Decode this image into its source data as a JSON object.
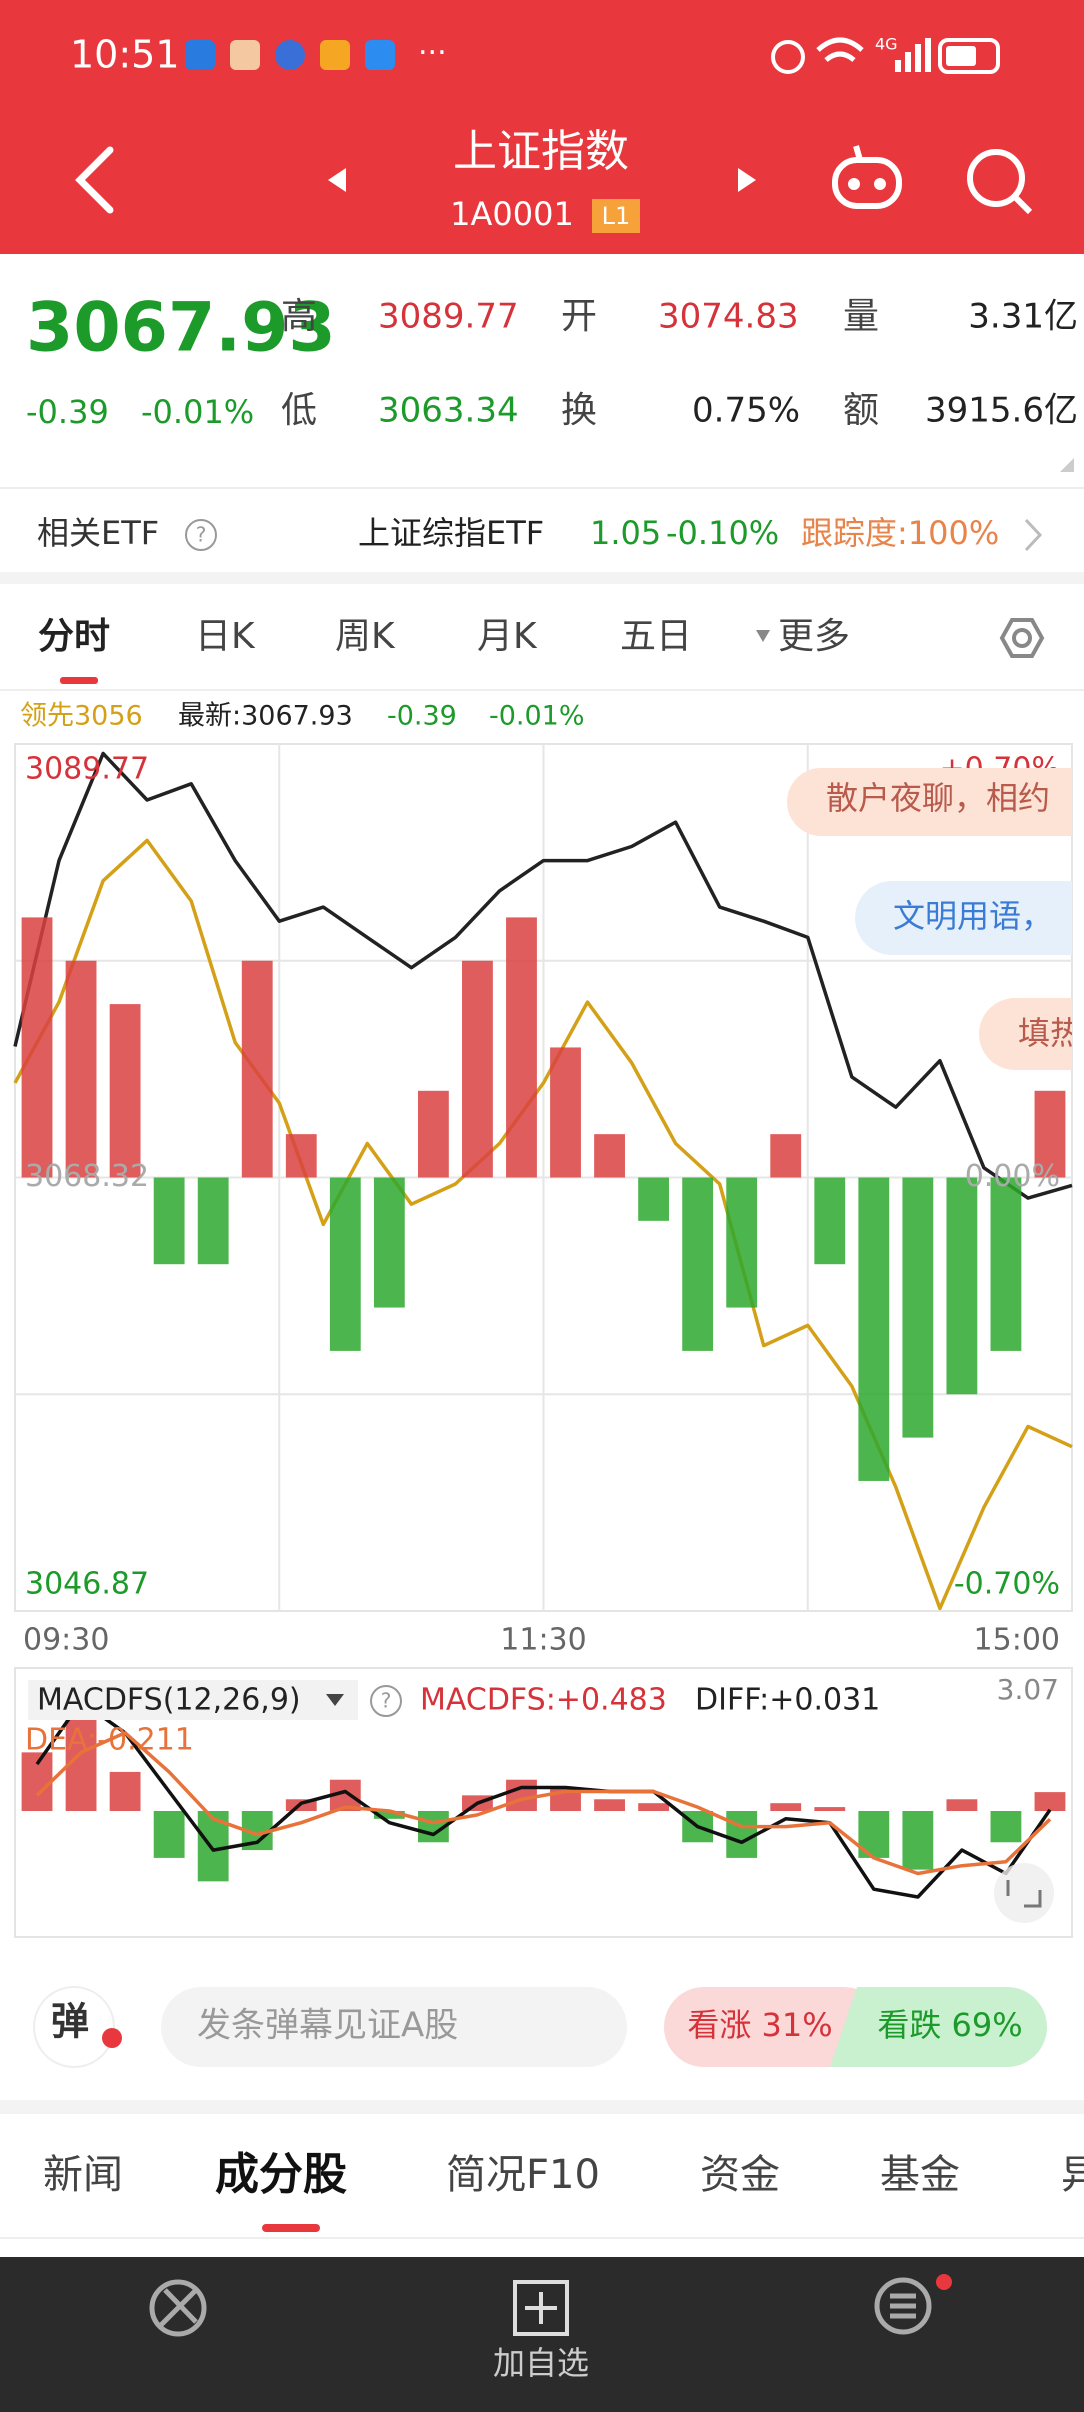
{
  "status_bar": {
    "time": "10:51",
    "more": "···",
    "network": "4G"
  },
  "header": {
    "title": "上证指数",
    "code": "1A0001",
    "level": "L1"
  },
  "quote": {
    "price": "3067.93",
    "change": "-0.39",
    "change_pct": "-0.01%",
    "fields": [
      {
        "label": "高",
        "value": "3089.77"
      },
      {
        "label": "开",
        "value": "3074.83"
      },
      {
        "label": "量",
        "value": "3.31亿"
      },
      {
        "label": "低",
        "value": "3063.34"
      },
      {
        "label": "换",
        "value": "0.75%"
      },
      {
        "label": "额",
        "value": "3915.6亿"
      }
    ]
  },
  "etf": {
    "label": "相关ETF",
    "help": "?",
    "name": "上证综指ETF",
    "price": "1.05",
    "change": "-0.10%",
    "tracking": "跟踪度:100%"
  },
  "tabs": [
    "分时",
    "日K",
    "周K",
    "月K",
    "五日",
    "更多"
  ],
  "legend": {
    "lead": "领先3056",
    "latest": "最新:3067.93",
    "change": "-0.39",
    "change_pct": "-0.01%"
  },
  "danmaku_bubbles": [
    "散户夜聊，相约",
    "文明用语，",
    "填热"
  ],
  "macd_legend": {
    "name": "MACDFS(12,26,9)",
    "help": "?",
    "macdfs": "MACDFS:+0.483",
    "diff": "DIFF:+0.031",
    "dea": "DEA:-0.211"
  },
  "danmaku": {
    "icon": "弹",
    "placeholder": "发条弹幕见证A股",
    "up": "看涨 31%",
    "down": "看跌 69%"
  },
  "bottom_tabs": [
    "新闻",
    "成分股",
    "简况F10",
    "资金",
    "基金",
    "异"
  ],
  "nav": {
    "add": "加自选"
  },
  "chart_data": [
    {
      "type": "line",
      "x": [
        0,
        10,
        20,
        30,
        40,
        50,
        60,
        70,
        80,
        90,
        100,
        110,
        120,
        130,
        140,
        150,
        160,
        170,
        180,
        190,
        200,
        210,
        220,
        230,
        240
      ],
      "xlim": [
        0,
        240
      ],
      "xticks": [
        {
          "value": 0,
          "label": "09:30"
        },
        {
          "value": 60,
          "label": null
        },
        {
          "value": 120,
          "label": "11:30"
        },
        {
          "value": 180,
          "label": null
        },
        {
          "value": 240,
          "label": "15:00"
        }
      ],
      "ylim": [
        3046.87,
        3089.77
      ],
      "yticks": [
        3046.87,
        {
          "value": 3057.595,
          "label": null
        },
        3068.32,
        {
          "value": 3079.045,
          "label": null
        },
        3089.77
      ],
      "y2lim": [
        -0.7,
        0.7
      ],
      "y2ticks": [
        {
          "value": -0.7,
          "label": "-0.70%"
        },
        {
          "value": 0,
          "label": "0.00%"
        },
        {
          "value": 0.7,
          "label": "+0.70%"
        }
      ],
      "y3lim": [
        -1,
        1
      ],
      "grid": true,
      "series": [
        {
          "color": "#222222",
          "values": [
            3074.8,
            3084.0,
            3089.3,
            3087.0,
            3087.8,
            3084.0,
            3081.0,
            3081.7,
            3080.2,
            3078.7,
            3080.2,
            3082.5,
            3084.0,
            3084.0,
            3084.7,
            3085.9,
            3081.7,
            3081.0,
            3080.2,
            3073.3,
            3071.8,
            3074.1,
            3068.8,
            3067.3,
            3067.93
          ]
        },
        {
          "color": "#d4a017",
          "values": [
            3073,
            3077,
            3083,
            3085,
            3082,
            3075,
            3072,
            3066,
            3070,
            3067,
            3068,
            3070,
            3073,
            3077,
            3074,
            3070,
            3068,
            3060,
            3061,
            3058,
            3053,
            3047,
            3052,
            3056,
            3055
          ]
        },
        {
          "kind": "bar",
          "axis": "y3",
          "up_color": "#d9413f",
          "down_color": "#2ea82e",
          "x": [
            5,
            15,
            25,
            35,
            45,
            55,
            65,
            75,
            85,
            95,
            105,
            115,
            125,
            135,
            145,
            155,
            165,
            175,
            185,
            195,
            205,
            215,
            225,
            235
          ],
          "values": [
            0.6,
            0.5,
            0.4,
            -0.2,
            -0.2,
            0.5,
            0.1,
            -0.4,
            -0.3,
            0.2,
            0.5,
            0.6,
            0.3,
            0.1,
            -0.1,
            -0.4,
            -0.3,
            0.1,
            -0.2,
            -0.7,
            -0.6,
            -0.5,
            -0.4,
            0.2
          ]
        }
      ]
    },
    {
      "type": "line",
      "x": [
        5,
        15,
        25,
        35,
        45,
        55,
        65,
        75,
        85,
        95,
        105,
        115,
        125,
        135,
        145,
        155,
        165,
        175,
        185,
        195,
        205,
        215,
        225,
        235
      ],
      "xlim": [
        0,
        240
      ],
      "ylim": [
        -3.07,
        3.07
      ],
      "yticks": [
        3.07
      ],
      "series": [
        {
          "kind": "bar",
          "up_color": "#d9413f",
          "down_color": "#2ea82e",
          "values": [
            1.5,
            2.5,
            1.0,
            -1.2,
            -1.8,
            -1.0,
            0.3,
            0.8,
            -0.2,
            -0.8,
            0.4,
            0.8,
            0.6,
            0.3,
            0.2,
            -0.8,
            -1.2,
            0.2,
            0.1,
            -1.2,
            -1.5,
            0.3,
            -0.8,
            0.483
          ]
        },
        {
          "color": "#111111",
          "values": [
            1.2,
            2.8,
            2.0,
            0.5,
            -1.0,
            -0.8,
            0.2,
            0.5,
            -0.3,
            -0.6,
            0.2,
            0.6,
            0.6,
            0.5,
            0.5,
            -0.4,
            -0.8,
            -0.2,
            -0.3,
            -2.0,
            -2.2,
            -1.0,
            -1.6,
            0.031
          ]
        },
        {
          "color": "#e8733a",
          "values": [
            0.4,
            1.5,
            2.0,
            1.0,
            -0.2,
            -0.6,
            -0.3,
            0.1,
            0.0,
            -0.3,
            -0.1,
            0.3,
            0.5,
            0.5,
            0.5,
            0.1,
            -0.4,
            -0.4,
            -0.3,
            -1.2,
            -1.6,
            -1.4,
            -1.3,
            -0.211
          ]
        }
      ]
    }
  ]
}
